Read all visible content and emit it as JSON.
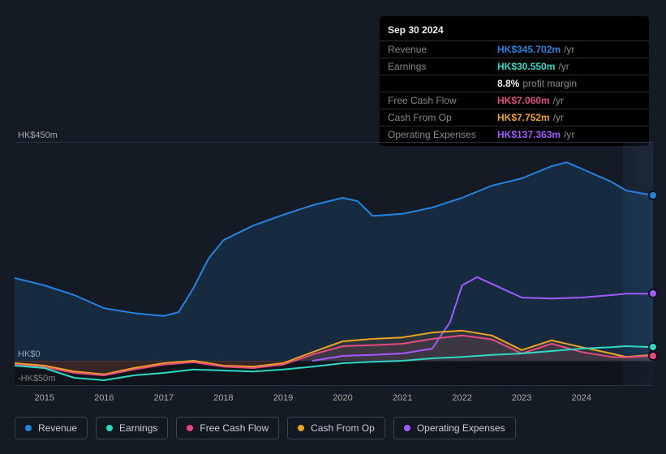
{
  "chart": {
    "type": "line-area",
    "x_min": 2014.5,
    "x_max": 2025.2,
    "y_min": -50,
    "y_max": 450,
    "background_color": "#151b24",
    "grid_color": "#2b3340",
    "axis_font_size": 11,
    "axis_font_color": "#aaaaaa",
    "future_band_start": 2024.7,
    "y_ticks": [
      {
        "v": 450,
        "label": "HK$450m"
      },
      {
        "v": 0,
        "label": "HK$0"
      },
      {
        "v": -50,
        "label": "-HK$50m"
      }
    ],
    "x_ticks": [
      {
        "v": 2015,
        "label": "2015"
      },
      {
        "v": 2016,
        "label": "2016"
      },
      {
        "v": 2017,
        "label": "2017"
      },
      {
        "v": 2018,
        "label": "2018"
      },
      {
        "v": 2019,
        "label": "2019"
      },
      {
        "v": 2020,
        "label": "2020"
      },
      {
        "v": 2021,
        "label": "2021"
      },
      {
        "v": 2022,
        "label": "2022"
      },
      {
        "v": 2023,
        "label": "2023"
      },
      {
        "v": 2024,
        "label": "2024"
      }
    ],
    "series": [
      {
        "name": "Revenue",
        "color": "#2383e2",
        "line_width": 2,
        "fill_opacity": 0.15,
        "points": [
          [
            2014.5,
            170
          ],
          [
            2015.0,
            155
          ],
          [
            2015.5,
            135
          ],
          [
            2016.0,
            108
          ],
          [
            2016.5,
            98
          ],
          [
            2017.0,
            92
          ],
          [
            2017.25,
            100
          ],
          [
            2017.5,
            150
          ],
          [
            2017.75,
            210
          ],
          [
            2018.0,
            248
          ],
          [
            2018.5,
            278
          ],
          [
            2019.0,
            300
          ],
          [
            2019.5,
            320
          ],
          [
            2020.0,
            335
          ],
          [
            2020.25,
            328
          ],
          [
            2020.5,
            298
          ],
          [
            2021.0,
            302
          ],
          [
            2021.5,
            315
          ],
          [
            2022.0,
            335
          ],
          [
            2022.5,
            360
          ],
          [
            2023.0,
            375
          ],
          [
            2023.5,
            400
          ],
          [
            2023.75,
            408
          ],
          [
            2024.0,
            395
          ],
          [
            2024.5,
            368
          ],
          [
            2024.75,
            350
          ],
          [
            2025.2,
            340
          ]
        ]
      },
      {
        "name": "Operating Expenses",
        "color": "#a259ff",
        "line_width": 2,
        "fill_opacity": 0.0,
        "points": [
          [
            2019.5,
            0
          ],
          [
            2020.0,
            10
          ],
          [
            2020.5,
            12
          ],
          [
            2021.0,
            15
          ],
          [
            2021.5,
            25
          ],
          [
            2021.8,
            80
          ],
          [
            2022.0,
            155
          ],
          [
            2022.25,
            172
          ],
          [
            2022.5,
            158
          ],
          [
            2023.0,
            130
          ],
          [
            2023.5,
            128
          ],
          [
            2024.0,
            130
          ],
          [
            2024.5,
            135
          ],
          [
            2024.75,
            138
          ],
          [
            2025.2,
            138
          ]
        ]
      },
      {
        "name": "Cash From Op",
        "color": "#eba421",
        "line_width": 2,
        "fill_opacity": 0.1,
        "points": [
          [
            2014.5,
            -5
          ],
          [
            2015.0,
            -10
          ],
          [
            2015.5,
            -22
          ],
          [
            2016.0,
            -28
          ],
          [
            2016.5,
            -15
          ],
          [
            2017.0,
            -5
          ],
          [
            2017.5,
            0
          ],
          [
            2018.0,
            -10
          ],
          [
            2018.5,
            -12
          ],
          [
            2019.0,
            -5
          ],
          [
            2019.5,
            18
          ],
          [
            2020.0,
            40
          ],
          [
            2020.5,
            45
          ],
          [
            2021.0,
            48
          ],
          [
            2021.5,
            58
          ],
          [
            2022.0,
            62
          ],
          [
            2022.5,
            52
          ],
          [
            2023.0,
            22
          ],
          [
            2023.5,
            42
          ],
          [
            2024.0,
            28
          ],
          [
            2024.5,
            15
          ],
          [
            2024.75,
            8
          ],
          [
            2025.2,
            12
          ]
        ]
      },
      {
        "name": "Free Cash Flow",
        "color": "#e64980",
        "line_width": 2,
        "fill_opacity": 0.1,
        "points": [
          [
            2014.5,
            -8
          ],
          [
            2015.0,
            -13
          ],
          [
            2015.5,
            -25
          ],
          [
            2016.0,
            -30
          ],
          [
            2016.5,
            -18
          ],
          [
            2017.0,
            -8
          ],
          [
            2017.5,
            -3
          ],
          [
            2018.0,
            -12
          ],
          [
            2018.5,
            -15
          ],
          [
            2019.0,
            -8
          ],
          [
            2019.5,
            13
          ],
          [
            2020.0,
            30
          ],
          [
            2020.5,
            32
          ],
          [
            2021.0,
            35
          ],
          [
            2021.5,
            45
          ],
          [
            2022.0,
            52
          ],
          [
            2022.5,
            44
          ],
          [
            2023.0,
            15
          ],
          [
            2023.5,
            35
          ],
          [
            2024.0,
            18
          ],
          [
            2024.5,
            8
          ],
          [
            2024.75,
            7
          ],
          [
            2025.2,
            10
          ]
        ]
      },
      {
        "name": "Earnings",
        "color": "#2bd9c5",
        "line_width": 2,
        "fill_opacity": 0.0,
        "points": [
          [
            2014.5,
            -10
          ],
          [
            2015.0,
            -15
          ],
          [
            2015.5,
            -35
          ],
          [
            2016.0,
            -40
          ],
          [
            2016.5,
            -30
          ],
          [
            2017.0,
            -25
          ],
          [
            2017.5,
            -18
          ],
          [
            2018.0,
            -20
          ],
          [
            2018.5,
            -22
          ],
          [
            2019.0,
            -18
          ],
          [
            2019.5,
            -12
          ],
          [
            2020.0,
            -5
          ],
          [
            2020.5,
            -2
          ],
          [
            2021.0,
            0
          ],
          [
            2021.5,
            5
          ],
          [
            2022.0,
            8
          ],
          [
            2022.5,
            12
          ],
          [
            2023.0,
            15
          ],
          [
            2023.5,
            20
          ],
          [
            2024.0,
            25
          ],
          [
            2024.5,
            28
          ],
          [
            2024.75,
            30
          ],
          [
            2025.2,
            28
          ]
        ]
      }
    ]
  },
  "tooltip": {
    "title": "Sep 30 2024",
    "rows": [
      {
        "label": "Revenue",
        "value": "HK$345.702m",
        "unit": "/yr",
        "color": "#2383e2"
      },
      {
        "label": "Earnings",
        "value": "HK$30.550m",
        "unit": "/yr",
        "color": "#2bd9c5"
      },
      {
        "label": "",
        "pct": "8.8%",
        "pm": "profit margin"
      },
      {
        "label": "Free Cash Flow",
        "value": "HK$7.060m",
        "unit": "/yr",
        "color": "#e64980"
      },
      {
        "label": "Cash From Op",
        "value": "HK$7.752m",
        "unit": "/yr",
        "color": "#eba421"
      },
      {
        "label": "Operating Expenses",
        "value": "HK$137.363m",
        "unit": "/yr",
        "color": "#a259ff"
      }
    ]
  },
  "legend": {
    "items": [
      {
        "label": "Revenue",
        "color": "#2383e2"
      },
      {
        "label": "Earnings",
        "color": "#2bd9c5"
      },
      {
        "label": "Free Cash Flow",
        "color": "#e64980"
      },
      {
        "label": "Cash From Op",
        "color": "#eba421"
      },
      {
        "label": "Operating Expenses",
        "color": "#a259ff"
      }
    ]
  }
}
